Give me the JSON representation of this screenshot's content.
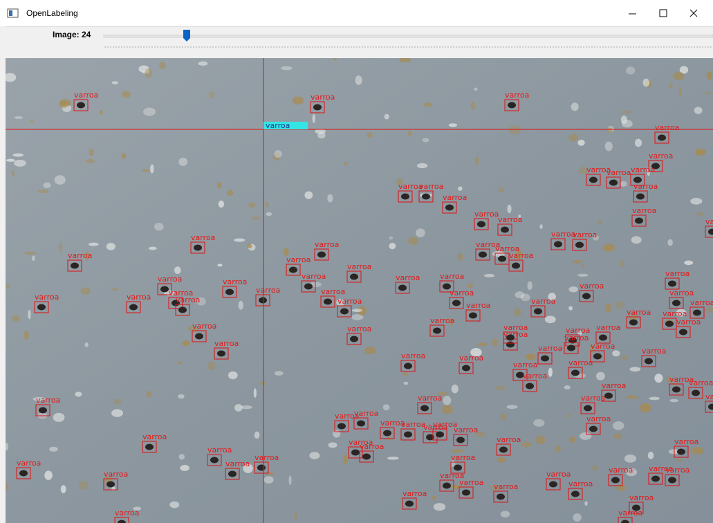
{
  "window": {
    "title": "OpenLabeling"
  },
  "toolbar": {
    "slider_label": "Image: 24"
  },
  "cursor": {
    "label": "varroa"
  },
  "boxes": [
    {
      "label": "varroa"
    },
    {
      "label": "varroa"
    },
    {
      "label": "varroa"
    },
    {
      "label": "varroa"
    },
    {
      "label": "varroa"
    },
    {
      "label": "varroa"
    },
    {
      "label": "varroa"
    },
    {
      "label": "varroa"
    },
    {
      "label": "varroa"
    },
    {
      "label": "varroa"
    },
    {
      "label": "varroa"
    },
    {
      "label": "varroa"
    },
    {
      "label": "varroa"
    },
    {
      "label": "varroa"
    },
    {
      "label": "varroa"
    },
    {
      "label": "varroa"
    },
    {
      "label": "varroa"
    },
    {
      "label": "varroa"
    },
    {
      "label": "varroa"
    },
    {
      "label": "varroa"
    },
    {
      "label": "varroa"
    },
    {
      "label": "varroa"
    },
    {
      "label": "varroa"
    },
    {
      "label": "varroa"
    },
    {
      "label": "varroa"
    },
    {
      "label": "varroa"
    },
    {
      "label": "varroa"
    },
    {
      "label": "varroa"
    },
    {
      "label": "varroa"
    },
    {
      "label": "varroa"
    },
    {
      "label": "varroa"
    },
    {
      "label": "varroa"
    },
    {
      "label": "varroa"
    },
    {
      "label": "varroa"
    },
    {
      "label": "varroa"
    },
    {
      "label": "varroa"
    },
    {
      "label": "varroa"
    },
    {
      "label": "varroa"
    },
    {
      "label": "varroa"
    },
    {
      "label": "varroa"
    },
    {
      "label": "varroa"
    },
    {
      "label": "varroa"
    },
    {
      "label": "varroa"
    },
    {
      "label": "varroa"
    },
    {
      "label": "varroa"
    },
    {
      "label": "varroa"
    },
    {
      "label": "varroa"
    },
    {
      "label": "varroa"
    },
    {
      "label": "varroa"
    },
    {
      "label": "varroa"
    },
    {
      "label": "varroa"
    },
    {
      "label": "varroa"
    },
    {
      "label": "varroa"
    },
    {
      "label": "varroa"
    },
    {
      "label": "varroa"
    },
    {
      "label": "varroa"
    },
    {
      "label": "varroa"
    },
    {
      "label": "varroa"
    },
    {
      "label": "varroa"
    },
    {
      "label": "varroa"
    },
    {
      "label": "varroa"
    },
    {
      "label": "varroa"
    },
    {
      "label": "varroa"
    },
    {
      "label": "varroa"
    },
    {
      "label": "varroa"
    },
    {
      "label": "varroa"
    },
    {
      "label": "varroa"
    },
    {
      "label": "varroa"
    },
    {
      "label": "varroa"
    },
    {
      "label": "varroa"
    },
    {
      "label": "varroa"
    },
    {
      "label": "varroa"
    },
    {
      "label": "varroa"
    },
    {
      "label": "varroa"
    },
    {
      "label": "varroa"
    },
    {
      "label": "varroa"
    },
    {
      "label": "varroa"
    },
    {
      "label": "varroa"
    },
    {
      "label": "varroa"
    },
    {
      "label": "varroa"
    },
    {
      "label": "varroa"
    },
    {
      "label": "varroa"
    },
    {
      "label": "varroa"
    },
    {
      "label": "varroa"
    },
    {
      "label": "varroa"
    },
    {
      "label": "varroa"
    },
    {
      "label": "varroa"
    },
    {
      "label": "varroa"
    },
    {
      "label": "varroa"
    },
    {
      "label": "varroa"
    },
    {
      "label": "varroa"
    },
    {
      "label": "varroa"
    },
    {
      "label": "varroa"
    },
    {
      "label": "varroa"
    },
    {
      "label": "varroa"
    },
    {
      "label": "varroa"
    },
    {
      "label": "varroa"
    },
    {
      "label": "varroa"
    },
    {
      "label": "varroa"
    },
    {
      "label": "varroa"
    },
    {
      "label": "varroa"
    },
    {
      "label": "varroa"
    },
    {
      "label": "varroa"
    }
  ]
}
